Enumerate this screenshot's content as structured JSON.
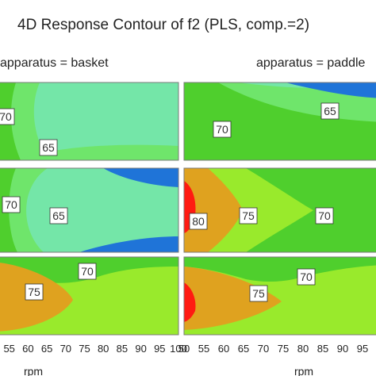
{
  "chart_data": {
    "type": "contour",
    "title": "4D Response Contour of f2 (PLS, comp.=2)",
    "xlabel": "rpm",
    "x_ticks": [
      50,
      55,
      60,
      65,
      70,
      75,
      80,
      85,
      90,
      95,
      100
    ],
    "xlim": [
      50,
      100
    ],
    "facets": [
      {
        "label": "apparatus = basket"
      },
      {
        "label": "apparatus = paddle"
      }
    ],
    "panels": [
      {
        "row": 0,
        "col": 0,
        "labels": [
          {
            "text": "70",
            "x": 53,
            "y": 0.62
          },
          {
            "text": "65",
            "x": 68,
            "y": 0.2
          }
        ]
      },
      {
        "row": 0,
        "col": 1,
        "labels": [
          {
            "text": "70",
            "x": 56,
            "y": 0.4
          },
          {
            "text": "65",
            "x": 81,
            "y": 0.65
          }
        ]
      },
      {
        "row": 1,
        "col": 0,
        "labels": [
          {
            "text": "70",
            "x": 52,
            "y": 0.58
          },
          {
            "text": "65",
            "x": 69,
            "y": 0.38
          }
        ]
      },
      {
        "row": 1,
        "col": 1,
        "labels": [
          {
            "text": "80",
            "x": 54,
            "y": 0.34
          },
          {
            "text": "75",
            "x": 68,
            "y": 0.4
          },
          {
            "text": "70",
            "x": 91,
            "y": 0.4
          }
        ]
      },
      {
        "row": 2,
        "col": 0,
        "labels": [
          {
            "text": "75",
            "x": 62,
            "y": 0.42
          },
          {
            "text": "70",
            "x": 78,
            "y": 0.75
          }
        ]
      },
      {
        "row": 2,
        "col": 1,
        "labels": [
          {
            "text": "75",
            "x": 69,
            "y": 0.45
          },
          {
            "text": "70",
            "x": 87,
            "y": 0.7
          }
        ]
      }
    ],
    "colors": {
      "blue": "#1f74d8",
      "cyan": "#74e6a8",
      "lightgreen": "#6fe56b",
      "green": "#4fcf2d",
      "lime": "#99ea2c",
      "orange": "#dfa21f",
      "red": "#ff1a12"
    }
  }
}
